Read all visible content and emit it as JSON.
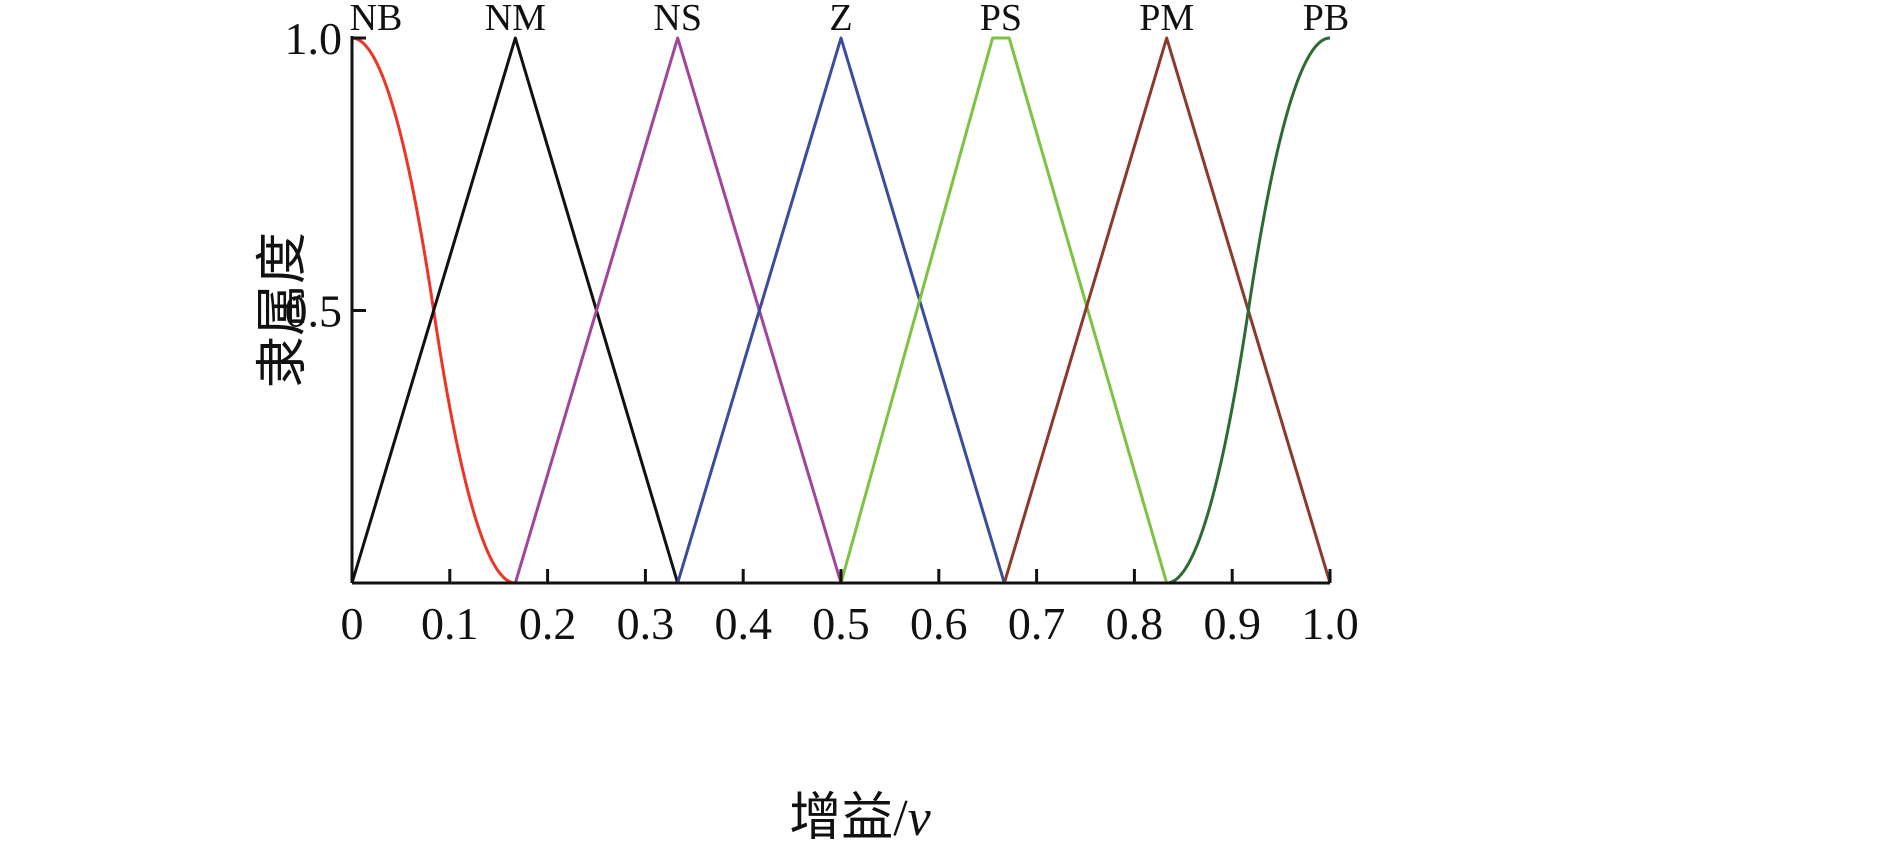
{
  "chart_data": {
    "type": "line",
    "title": "",
    "xlabel": "增益/",
    "xlabel_var": "v",
    "ylabel": "隶属度",
    "xlim": [
      0,
      1
    ],
    "ylim": [
      0,
      1
    ],
    "x_ticks": [
      "0",
      "0.1",
      "0.2",
      "0.3",
      "0.4",
      "0.5",
      "0.6",
      "0.7",
      "0.8",
      "0.9",
      "1.0"
    ],
    "y_ticks": [
      "0.5",
      "1.0"
    ],
    "grid": false,
    "legend": "none",
    "series": [
      {
        "name": "NB",
        "shape": "z",
        "params": [
          0,
          0.167
        ],
        "color": "#ee3524"
      },
      {
        "name": "NM",
        "shape": "tri",
        "params": [
          0,
          0.167,
          0.333
        ],
        "color": "#111111"
      },
      {
        "name": "NS",
        "shape": "tri",
        "params": [
          0.167,
          0.333,
          0.5
        ],
        "color": "#a2449a"
      },
      {
        "name": "Z",
        "shape": "tri",
        "params": [
          0.333,
          0.5,
          0.667
        ],
        "color": "#3c4c9c"
      },
      {
        "name": "PS",
        "shape": "trap",
        "params": [
          0.5,
          0.655,
          0.672,
          0.833
        ],
        "color": "#7dc242"
      },
      {
        "name": "PM",
        "shape": "tri",
        "params": [
          0.667,
          0.833,
          1.0
        ],
        "color": "#8b3a2a"
      },
      {
        "name": "PB",
        "shape": "s",
        "params": [
          0.833,
          1.0
        ],
        "color": "#2e6b32"
      }
    ]
  }
}
